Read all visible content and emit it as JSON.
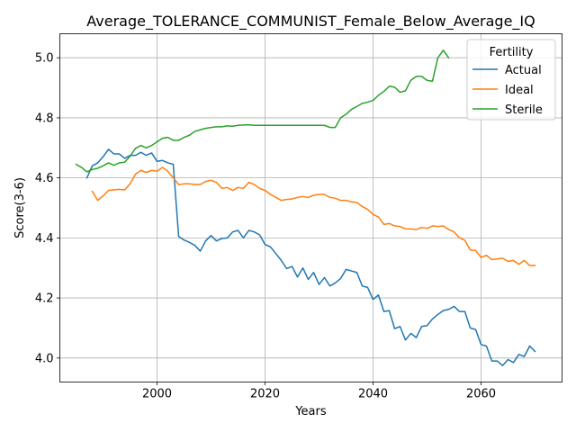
{
  "chart_data": {
    "type": "line",
    "title": "Average_TOLERANCE_COMMUNIST_Female_Below_Average_IQ",
    "xlabel": "Years",
    "ylabel": "Score(3-6)",
    "xlim": [
      1982,
      2075
    ],
    "ylim": [
      3.92,
      5.08
    ],
    "xticks": [
      2000,
      2020,
      2040,
      2060
    ],
    "yticks": [
      4.0,
      4.2,
      4.4,
      4.6,
      4.8,
      5.0
    ],
    "ytick_labels": [
      "4.0",
      "4.2",
      "4.4",
      "4.6",
      "4.8",
      "5.0"
    ],
    "grid": true,
    "legend": {
      "title": "Fertility",
      "position": "upper right"
    },
    "series": [
      {
        "name": "Actual",
        "color": "#1f77b4",
        "x": [
          1987,
          1988,
          1989,
          1990,
          1991,
          1992,
          1993,
          1994,
          1995,
          1996,
          1997,
          1998,
          1999,
          2000,
          2001,
          2002,
          2003,
          2004,
          2005,
          2006,
          2007,
          2008,
          2009,
          2010,
          2011,
          2012,
          2013,
          2014,
          2015,
          2016,
          2017,
          2018,
          2019,
          2020,
          2021,
          2022,
          2023,
          2024,
          2025,
          2026,
          2027,
          2028,
          2029,
          2030,
          2031,
          2032,
          2033,
          2034,
          2035,
          2036,
          2037,
          2038,
          2039,
          2040,
          2041,
          2042,
          2043,
          2044,
          2045,
          2046,
          2047,
          2048,
          2049,
          2050,
          2051,
          2052,
          2053,
          2054,
          2055,
          2056,
          2057,
          2058,
          2059,
          2060,
          2061,
          2062,
          2063,
          2064,
          2065,
          2066,
          2067,
          2068,
          2069,
          2070
        ],
        "y": [
          4.6,
          4.64,
          4.65,
          4.67,
          4.695,
          4.68,
          4.68,
          4.665,
          4.675,
          4.675,
          4.685,
          4.675,
          4.683,
          4.655,
          4.658,
          4.65,
          4.645,
          4.405,
          4.393,
          4.385,
          4.375,
          4.356,
          4.39,
          4.408,
          4.39,
          4.398,
          4.4,
          4.42,
          4.425,
          4.4,
          4.425,
          4.42,
          4.41,
          4.378,
          4.37,
          4.348,
          4.325,
          4.298,
          4.305,
          4.27,
          4.3,
          4.262,
          4.285,
          4.245,
          4.268,
          4.24,
          4.25,
          4.265,
          4.295,
          4.29,
          4.285,
          4.24,
          4.235,
          4.195,
          4.21,
          4.155,
          4.158,
          4.098,
          4.105,
          4.06,
          4.082,
          4.068,
          4.105,
          4.108,
          4.13,
          4.145,
          4.158,
          4.162,
          4.172,
          4.155,
          4.155,
          4.1,
          4.095,
          4.045,
          4.04,
          3.99,
          3.99,
          3.975,
          3.995,
          3.985,
          4.012,
          4.005,
          4.04,
          4.022
        ]
      },
      {
        "name": "Ideal",
        "color": "#ff7f0e",
        "x": [
          1988,
          1989,
          1990,
          1991,
          1992,
          1993,
          1994,
          1995,
          1996,
          1997,
          1998,
          1999,
          2000,
          2001,
          2002,
          2003,
          2004,
          2005,
          2006,
          2007,
          2008,
          2009,
          2010,
          2011,
          2012,
          2013,
          2014,
          2015,
          2016,
          2017,
          2018,
          2019,
          2020,
          2021,
          2022,
          2023,
          2024,
          2025,
          2026,
          2027,
          2028,
          2029,
          2030,
          2031,
          2032,
          2033,
          2034,
          2035,
          2036,
          2037,
          2038,
          2039,
          2040,
          2041,
          2042,
          2043,
          2044,
          2045,
          2046,
          2047,
          2048,
          2049,
          2050,
          2051,
          2052,
          2053,
          2054,
          2055,
          2056,
          2057,
          2058,
          2059,
          2060,
          2061,
          2062,
          2063,
          2064,
          2065,
          2066,
          2067,
          2068,
          2069,
          2070
        ],
        "y": [
          4.555,
          4.525,
          4.54,
          4.558,
          4.56,
          4.562,
          4.56,
          4.58,
          4.612,
          4.625,
          4.618,
          4.625,
          4.622,
          4.635,
          4.622,
          4.6,
          4.578,
          4.58,
          4.58,
          4.578,
          4.578,
          4.588,
          4.592,
          4.585,
          4.565,
          4.568,
          4.558,
          4.568,
          4.565,
          4.585,
          4.578,
          4.565,
          4.558,
          4.545,
          4.535,
          4.525,
          4.528,
          4.53,
          4.535,
          4.538,
          4.535,
          4.542,
          4.545,
          4.545,
          4.535,
          4.532,
          4.525,
          4.525,
          4.52,
          4.518,
          4.505,
          4.495,
          4.478,
          4.47,
          4.445,
          4.448,
          4.44,
          4.438,
          4.43,
          4.43,
          4.428,
          4.435,
          4.432,
          4.44,
          4.438,
          4.44,
          4.428,
          4.42,
          4.4,
          4.392,
          4.36,
          4.358,
          4.335,
          4.342,
          4.328,
          4.33,
          4.332,
          4.322,
          4.325,
          4.312,
          4.325,
          4.308,
          4.308
        ]
      },
      {
        "name": "Sterile",
        "color": "#2ca02c",
        "x": [
          1985,
          1986,
          1987,
          1988,
          1989,
          1990,
          1991,
          1992,
          1993,
          1994,
          1995,
          1996,
          1997,
          1998,
          1999,
          2000,
          2001,
          2002,
          2003,
          2004,
          2005,
          2006,
          2007,
          2008,
          2009,
          2010,
          2011,
          2012,
          2013,
          2014,
          2015,
          2016,
          2017,
          2018,
          2019,
          2020,
          2021,
          2022,
          2023,
          2024,
          2025,
          2026,
          2027,
          2028,
          2029,
          2030,
          2031,
          2032,
          2033,
          2034,
          2035,
          2036,
          2037,
          2038,
          2039,
          2040,
          2041,
          2042,
          2043,
          2044,
          2045,
          2046,
          2047,
          2048,
          2049,
          2050,
          2051,
          2052,
          2053,
          2054
        ],
        "y": [
          4.645,
          4.635,
          4.62,
          4.628,
          4.632,
          4.64,
          4.65,
          4.642,
          4.65,
          4.652,
          4.672,
          4.698,
          4.708,
          4.7,
          4.708,
          4.72,
          4.732,
          4.735,
          4.725,
          4.725,
          4.735,
          4.742,
          4.755,
          4.76,
          4.765,
          4.768,
          4.77,
          4.77,
          4.773,
          4.772,
          4.775,
          4.776,
          4.777,
          4.775,
          4.775,
          4.775,
          4.775,
          4.775,
          4.775,
          4.775,
          4.775,
          4.775,
          4.775,
          4.775,
          4.775,
          4.775,
          4.775,
          4.768,
          4.768,
          4.8,
          4.812,
          4.828,
          4.838,
          4.848,
          4.852,
          4.858,
          4.875,
          4.888,
          4.905,
          4.902,
          4.885,
          4.89,
          4.925,
          4.938,
          4.938,
          4.925,
          4.922,
          5.0,
          5.025,
          5.0
        ]
      }
    ]
  }
}
